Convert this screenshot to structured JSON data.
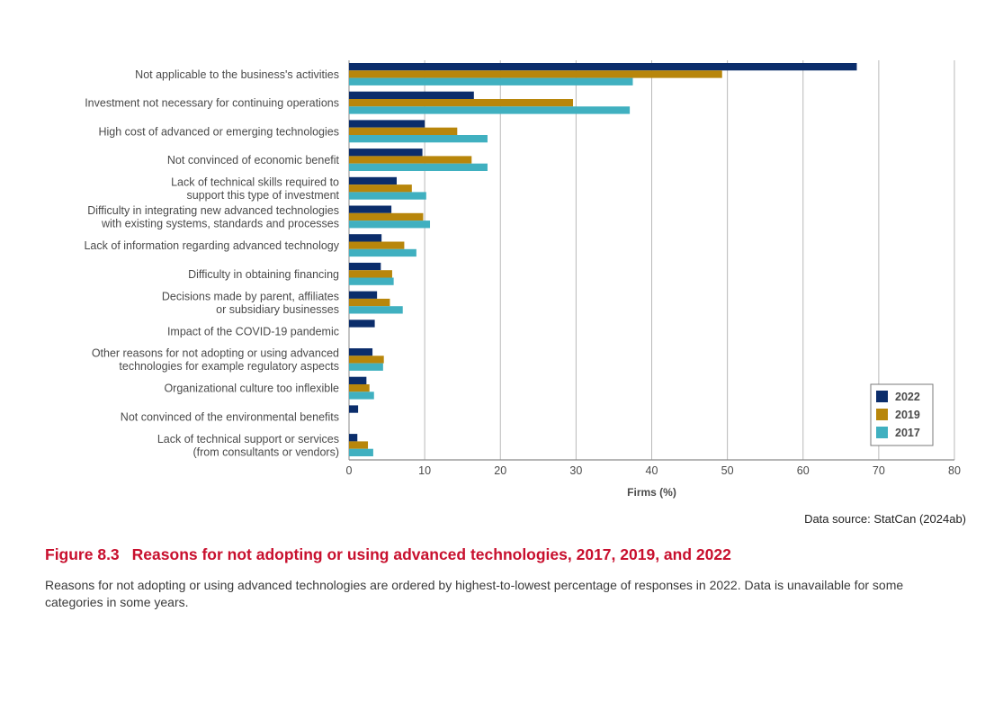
{
  "chart_data": {
    "type": "bar",
    "orientation": "horizontal",
    "categories": [
      [
        "Not applicable to the business's activities"
      ],
      [
        "Investment not necessary for continuing operations"
      ],
      [
        "High cost of advanced or emerging technologies"
      ],
      [
        "Not convinced of economic benefit"
      ],
      [
        "Lack of technical skills required to",
        "support this type of investment"
      ],
      [
        "Difficulty in integrating new advanced technologies",
        "with existing systems, standards and processes"
      ],
      [
        "Lack of information regarding advanced technology"
      ],
      [
        "Difficulty in obtaining financing"
      ],
      [
        "Decisions made by parent, affiliates",
        "or subsidiary businesses"
      ],
      [
        "Impact of the COVID-19 pandemic"
      ],
      [
        "Other reasons for not adopting or using advanced",
        "technologies for example regulatory aspects"
      ],
      [
        "Organizational culture too inflexible"
      ],
      [
        "Not convinced of the environmental benefits"
      ],
      [
        "Lack of technical support or services",
        "(from consultants or vendors)"
      ]
    ],
    "series": [
      {
        "name": "2022",
        "color": "#0b2d6b",
        "values": [
          67.1,
          16.5,
          10.0,
          9.7,
          6.3,
          5.6,
          4.3,
          4.2,
          3.7,
          3.4,
          3.1,
          2.3,
          1.2,
          1.1
        ]
      },
      {
        "name": "2019",
        "color": "#b8860b",
        "values": [
          49.3,
          29.6,
          14.3,
          16.2,
          8.3,
          9.8,
          7.3,
          5.7,
          5.4,
          null,
          4.6,
          2.7,
          null,
          2.5
        ]
      },
      {
        "name": "2017",
        "color": "#40b0c0",
        "values": [
          37.5,
          37.1,
          18.3,
          18.3,
          10.2,
          10.7,
          8.9,
          5.9,
          7.1,
          null,
          4.5,
          3.3,
          null,
          3.2
        ]
      }
    ],
    "xlabel": "Firms (%)",
    "xlim": [
      0,
      80
    ],
    "xticks": [
      0,
      10,
      20,
      30,
      40,
      50,
      60,
      70,
      80
    ],
    "grid": "vertical",
    "legend": "bottom-right"
  },
  "source": "Data source: StatCan (2024ab)",
  "figure": {
    "number": "Figure 8.3",
    "title": "Reasons for not adopting or using advanced technologies, 2017, 2019, and 2022",
    "caption": "Reasons for not adopting or using advanced technologies are ordered by highest-to-lowest percentage of responses in 2022. Data is unavailable for some categories in some years."
  }
}
